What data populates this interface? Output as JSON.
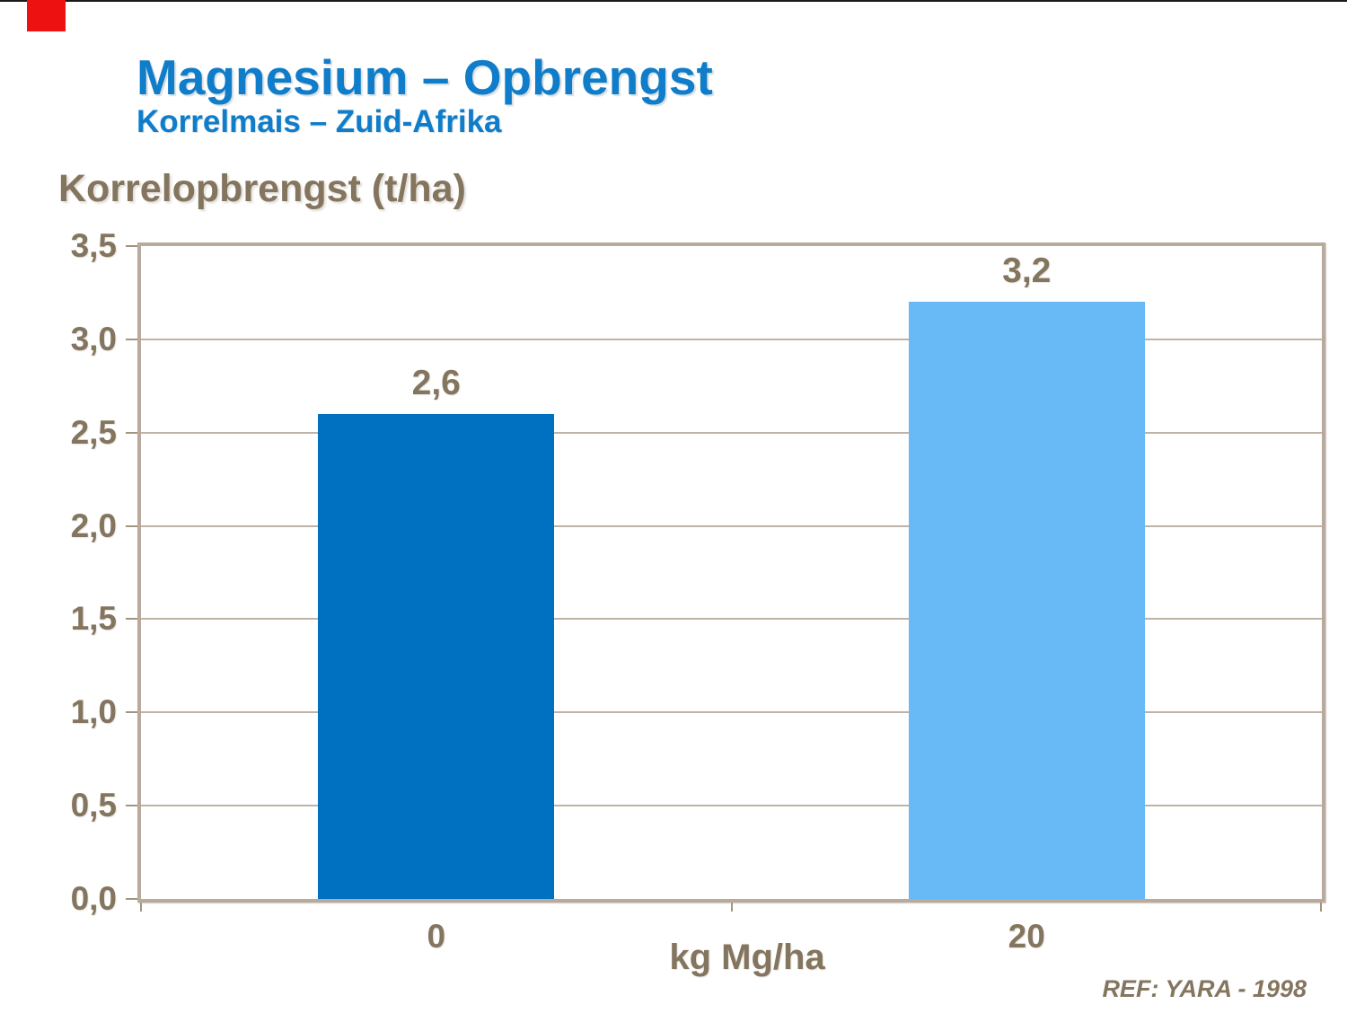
{
  "slide": {
    "title": "Magnesium – Opbrengst",
    "subtitle": "Korrelmais – Zuid-Afrika",
    "accent_color": "#ee1111",
    "title_color": "#0f7dc9"
  },
  "chart_data": {
    "type": "bar",
    "title": "",
    "ylabel": "Korrelopbrengst (t/ha)",
    "xlabel": "kg Mg/ha",
    "categories": [
      "0",
      "20"
    ],
    "values": [
      2.6,
      3.2
    ],
    "value_labels": [
      "2,6",
      "3,2"
    ],
    "bar_colors": [
      "#0070c0",
      "#68baf6"
    ],
    "ylim": [
      0,
      3.5
    ],
    "ytick_step": 0.5,
    "ytick_labels": [
      "0,0",
      "0,5",
      "1,0",
      "1,5",
      "2,0",
      "2,5",
      "3,0",
      "3,5"
    ],
    "grid": true,
    "legend": false,
    "annotation": "REF: YARA - 1998",
    "colors": {
      "axis_text": "#84755f",
      "grid_line": "#bfb3a5",
      "frame_border": "#b8ab9d",
      "tick": "#a3947e"
    }
  }
}
